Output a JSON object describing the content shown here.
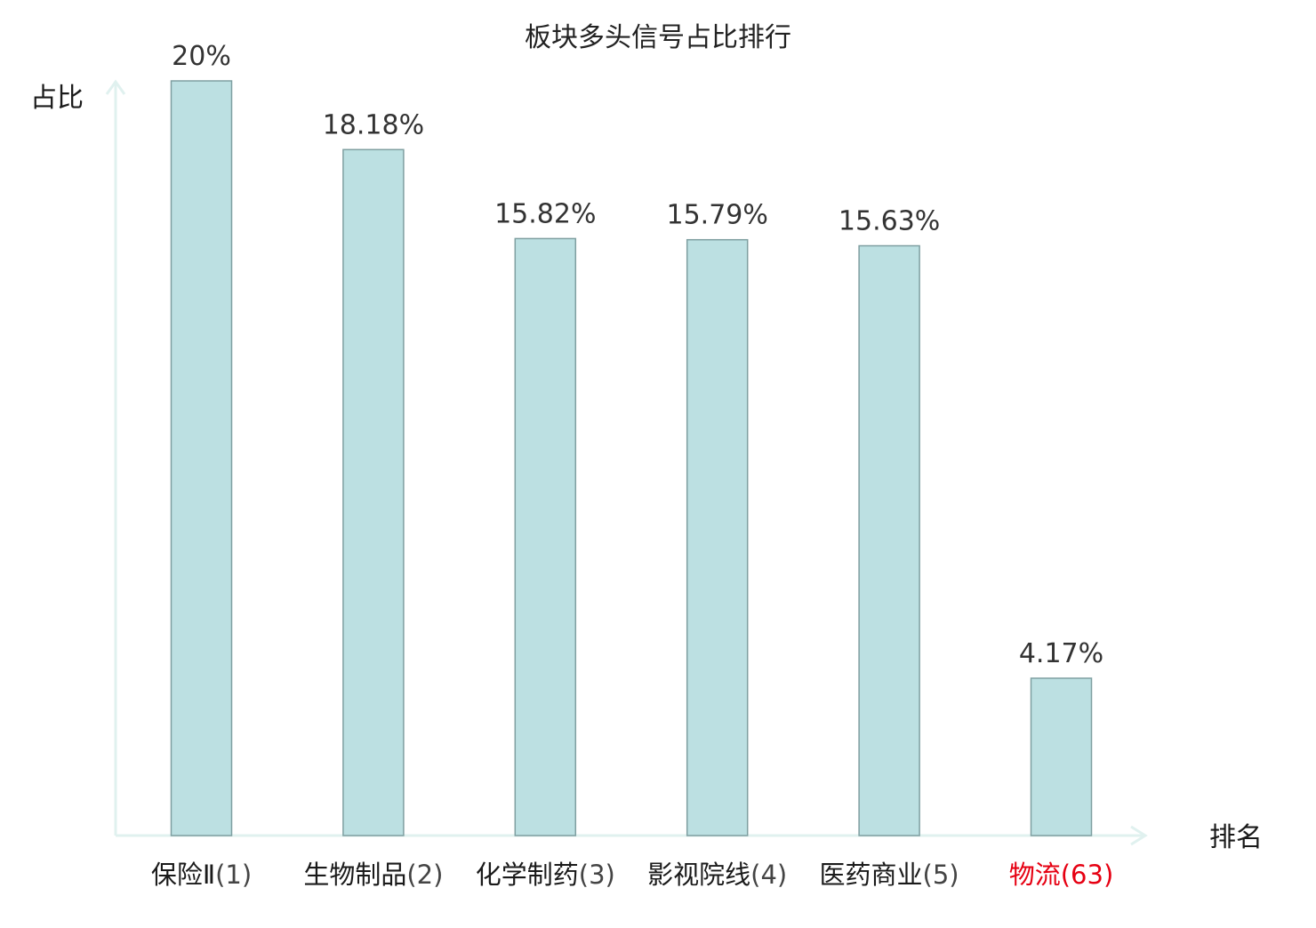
{
  "chart_data": {
    "type": "bar",
    "title": "板块多头信号占比排行",
    "ylabel": "占比",
    "xlabel": "排名",
    "categories": [
      {
        "name": "保险Ⅱ",
        "rank": "(1)"
      },
      {
        "name": "生物制品",
        "rank": "(2)"
      },
      {
        "name": "化学制药",
        "rank": "(3)"
      },
      {
        "name": "影视院线",
        "rank": "(4)"
      },
      {
        "name": "医药商业",
        "rank": "(5)"
      },
      {
        "name": "物流",
        "rank": "(63)"
      }
    ],
    "values": [
      20,
      18.18,
      15.82,
      15.79,
      15.63,
      4.17
    ],
    "value_labels": [
      "20%",
      "18.18%",
      "15.82%",
      "15.79%",
      "15.63%",
      "4.17%"
    ],
    "highlight_index": 5,
    "ylim": [
      0,
      20
    ],
    "grid": false,
    "legend": "none",
    "colors": {
      "bar_fill": "#bce0e2",
      "bar_stroke": "#7f9fa1",
      "axis": "#e0f1ef",
      "text": "#333333",
      "label_text": "#1a1a1a",
      "highlight": "#e60012"
    }
  }
}
